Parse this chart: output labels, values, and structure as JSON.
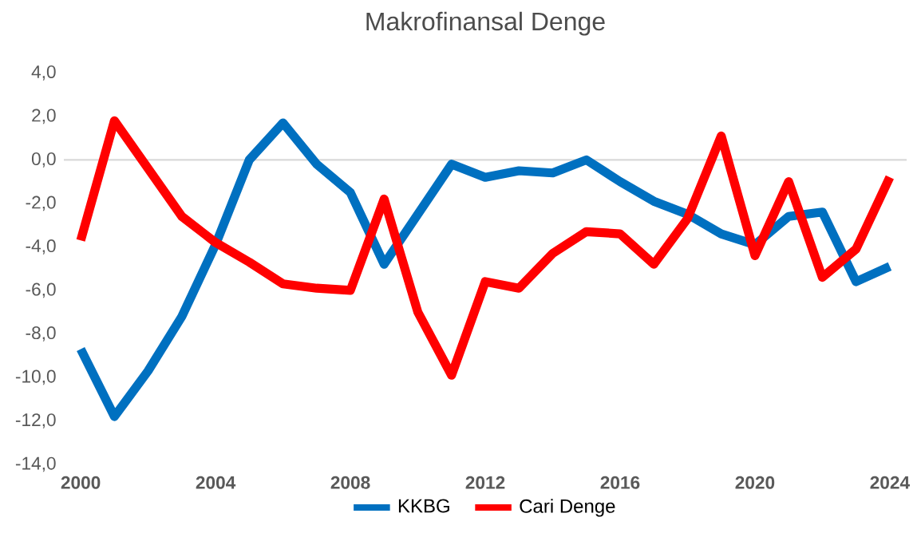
{
  "chart_data": {
    "type": "line",
    "title": "Makrofinansal Denge",
    "x": [
      2000,
      2001,
      2002,
      2003,
      2004,
      2005,
      2006,
      2007,
      2008,
      2009,
      2010,
      2011,
      2012,
      2013,
      2014,
      2015,
      2016,
      2017,
      2018,
      2019,
      2020,
      2021,
      2022,
      2023,
      2024
    ],
    "series": [
      {
        "name": "KKBG",
        "color": "#0070c0",
        "values": [
          -8.7,
          -11.8,
          -9.7,
          -7.2,
          -3.9,
          0.0,
          1.7,
          -0.2,
          -1.5,
          -4.8,
          -2.5,
          -0.2,
          -0.8,
          -0.5,
          -0.6,
          0.0,
          -1.0,
          -1.9,
          -2.5,
          -3.4,
          -3.9,
          -2.6,
          -2.4,
          -5.6,
          -4.9
        ]
      },
      {
        "name": "Cari Denge",
        "color": "#ff0000",
        "values": [
          -3.7,
          1.8,
          -0.4,
          -2.6,
          -3.8,
          -4.7,
          -5.7,
          -5.9,
          -6.0,
          -1.8,
          -7.0,
          -9.9,
          -5.6,
          -5.9,
          -4.3,
          -3.3,
          -3.4,
          -4.8,
          -2.7,
          1.1,
          -4.4,
          -1.0,
          -5.4,
          -4.1,
          -0.8
        ]
      }
    ],
    "xlim": [
      1999.5,
      2024.5
    ],
    "xticks": [
      2000,
      2004,
      2008,
      2012,
      2016,
      2020,
      2024
    ],
    "ylim": [
      -14,
      4
    ],
    "yticks": [
      {
        "value": -14,
        "label": "-14,0"
      },
      {
        "value": -12,
        "label": "-12,0"
      },
      {
        "value": -10,
        "label": "-10,0"
      },
      {
        "value": -8,
        "label": "-8,0"
      },
      {
        "value": -6,
        "label": "-6,0"
      },
      {
        "value": -4,
        "label": "-4,0"
      },
      {
        "value": -2,
        "label": "-2,0"
      },
      {
        "value": 0,
        "label": "0,0"
      },
      {
        "value": 2,
        "label": "2,0"
      },
      {
        "value": 4,
        "label": "4,0"
      }
    ],
    "ref_lines": [
      {
        "axis": "y",
        "value": 0,
        "color": "#d9d9d9"
      }
    ],
    "grid": false,
    "legend": "bottom",
    "marker": "none",
    "line_style": "solid"
  }
}
